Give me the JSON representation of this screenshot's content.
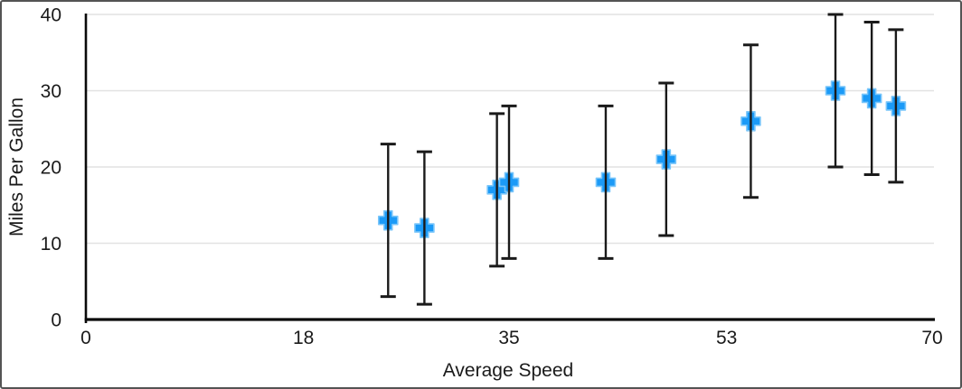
{
  "chart_data": {
    "type": "scatter",
    "title": "",
    "xlabel": "Average Speed",
    "ylabel": "Miles Per Gallon",
    "xlim": [
      0,
      70
    ],
    "ylim": [
      0,
      40
    ],
    "xticks": [
      "0",
      "18",
      "35",
      "53",
      "70"
    ],
    "xtick_values": [
      0,
      18,
      35,
      53,
      70
    ],
    "yticks": [
      "0",
      "10",
      "20",
      "30",
      "40"
    ],
    "ytick_values": [
      0,
      10,
      20,
      30,
      40
    ],
    "grid": "horizontal",
    "legend": "none",
    "series": [
      {
        "marker": "plus",
        "marker_color": "#1B9AF7",
        "marker_outline_color": "#7AC6FA",
        "error_bar_color": "#1A1A1A",
        "error_y_plus": 10,
        "error_y_minus": 10,
        "points": [
          {
            "x": 25,
            "y": 13
          },
          {
            "x": 28,
            "y": 12
          },
          {
            "x": 34,
            "y": 17
          },
          {
            "x": 35,
            "y": 18
          },
          {
            "x": 43,
            "y": 18
          },
          {
            "x": 48,
            "y": 21
          },
          {
            "x": 55,
            "y": 26
          },
          {
            "x": 62,
            "y": 30
          },
          {
            "x": 65,
            "y": 29
          },
          {
            "x": 67,
            "y": 28
          }
        ]
      }
    ],
    "colors": {
      "axis": "#0a0a0a",
      "gridline": "#e2e2e2",
      "text": "#1a1a1a",
      "background": "#ffffff",
      "frame_border": "#545454"
    }
  }
}
